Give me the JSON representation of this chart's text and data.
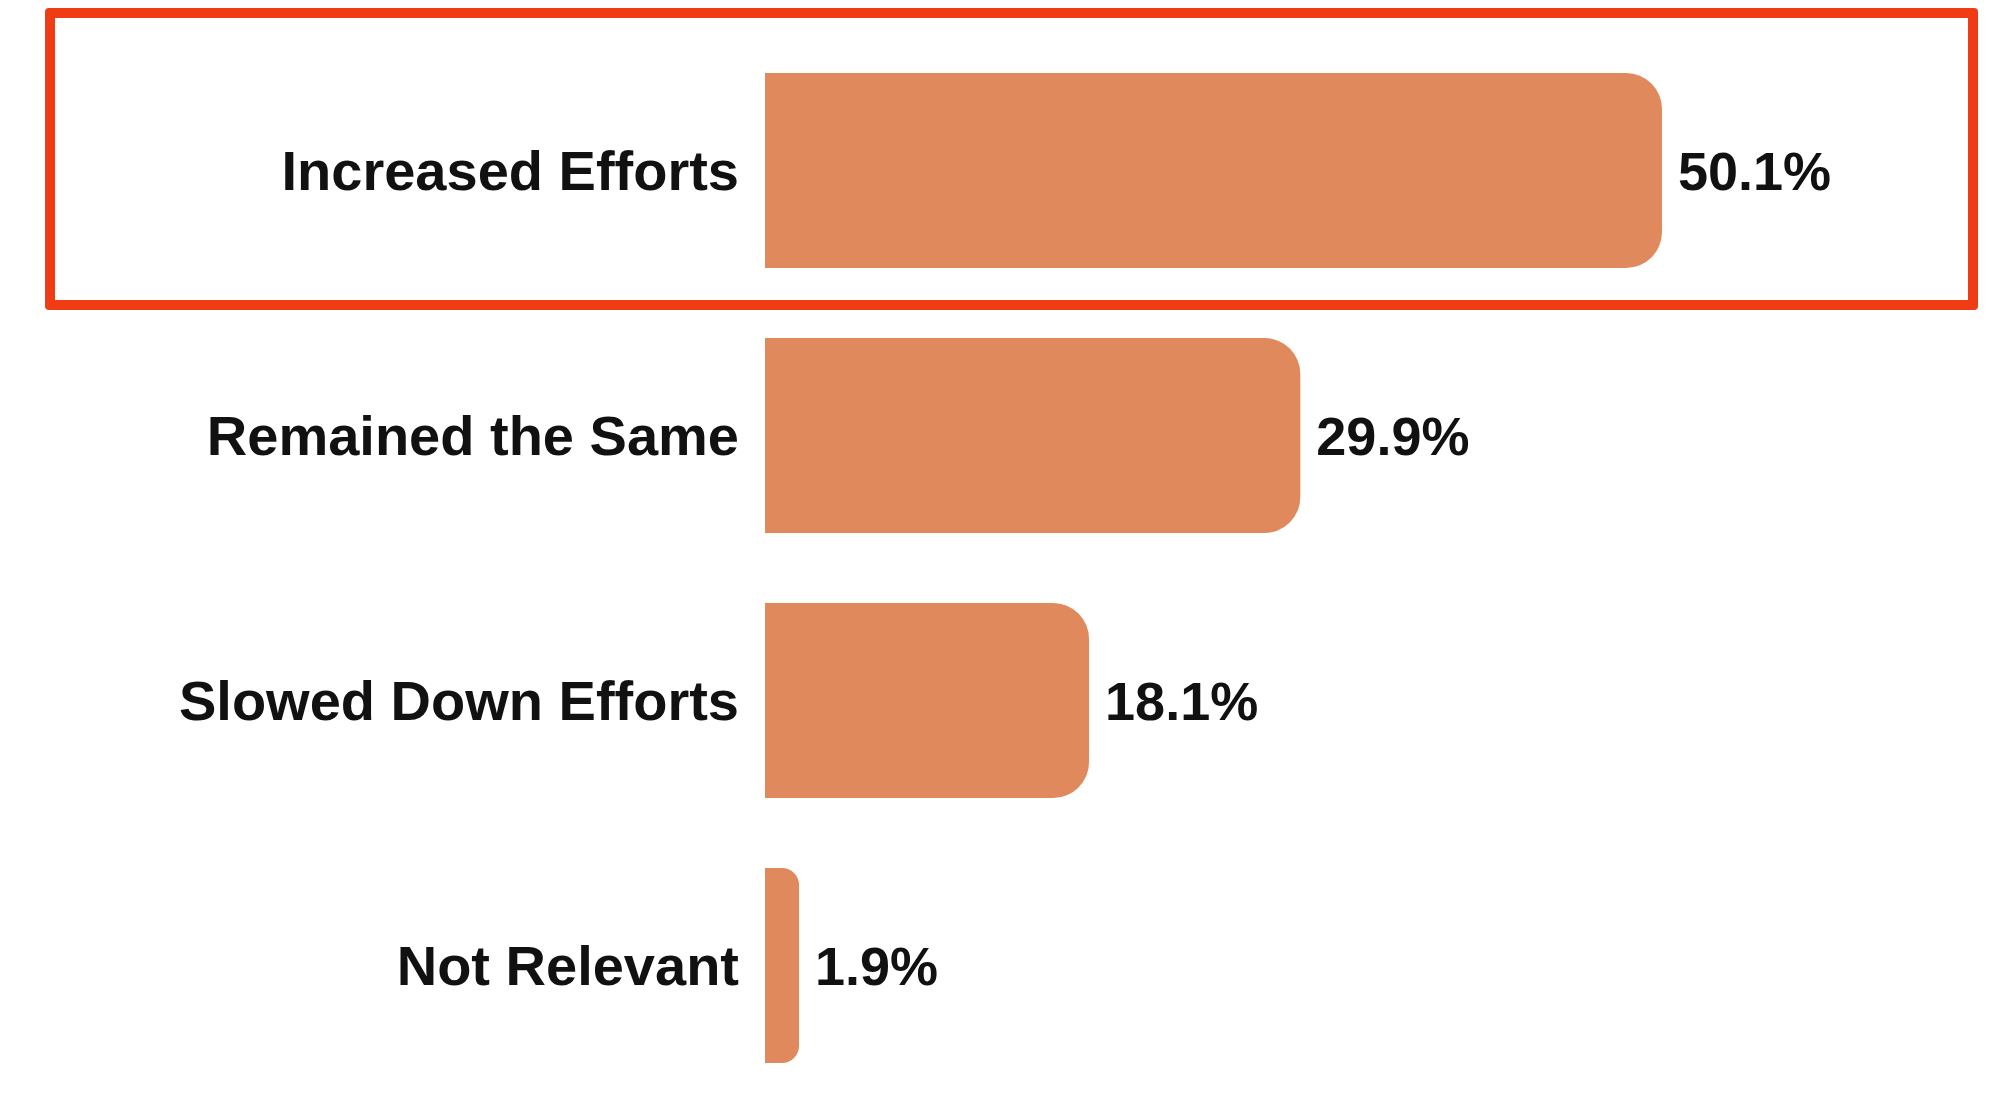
{
  "chart_data": {
    "type": "bar",
    "orientation": "horizontal",
    "categories": [
      "Increased Efforts",
      "Remained the Same",
      "Slowed Down Efforts",
      "Not Relevant"
    ],
    "values": [
      50.1,
      29.9,
      18.1,
      1.9
    ],
    "value_labels": [
      "50.1%",
      "29.9%",
      "18.1%",
      "1.9%"
    ],
    "color": "#e0895c",
    "grid": false,
    "legend": false
  }
}
